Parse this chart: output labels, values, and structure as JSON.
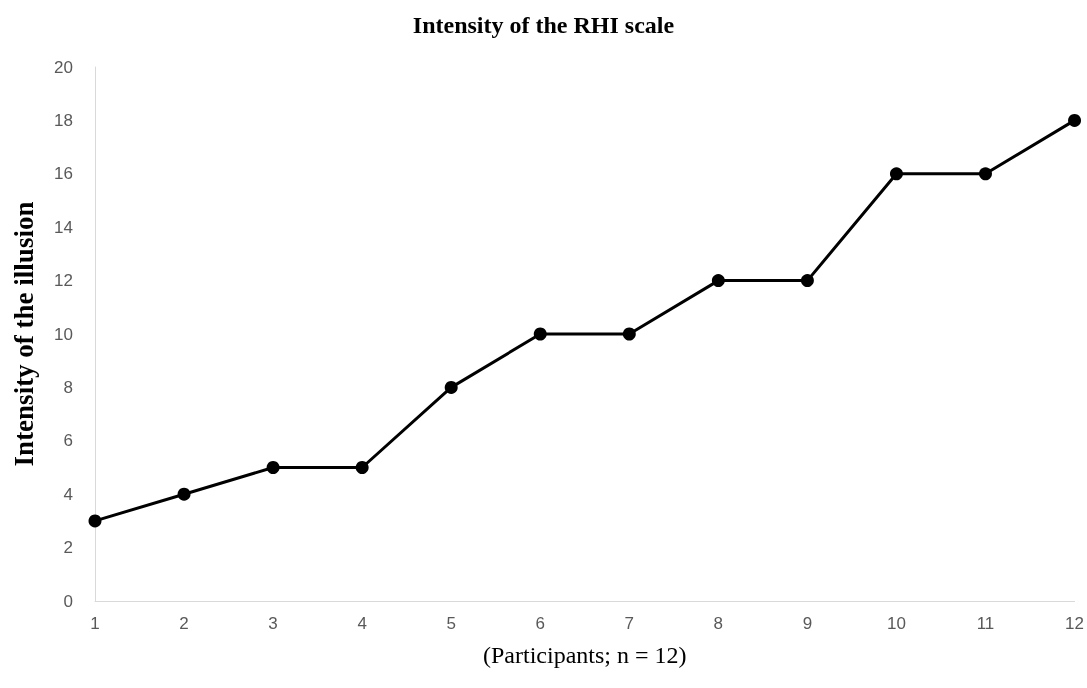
{
  "chart_data": {
    "type": "line",
    "title": "Intensity of the RHI scale",
    "xlabel": "(Participants; n = 12)",
    "ylabel": "Intensity of the illusion",
    "categories": [
      "1",
      "2",
      "3",
      "4",
      "5",
      "6",
      "7",
      "8",
      "9",
      "10",
      "11",
      "12"
    ],
    "values": [
      3,
      4,
      5,
      5,
      8,
      10,
      10,
      12,
      12,
      16,
      16,
      18
    ],
    "color": "#000000",
    "marker": "circle",
    "line_style": "solid",
    "ylim": [
      0,
      20
    ],
    "yticks": [
      0,
      2,
      4,
      6,
      8,
      10,
      12,
      14,
      16,
      18,
      20
    ],
    "grid": false
  }
}
